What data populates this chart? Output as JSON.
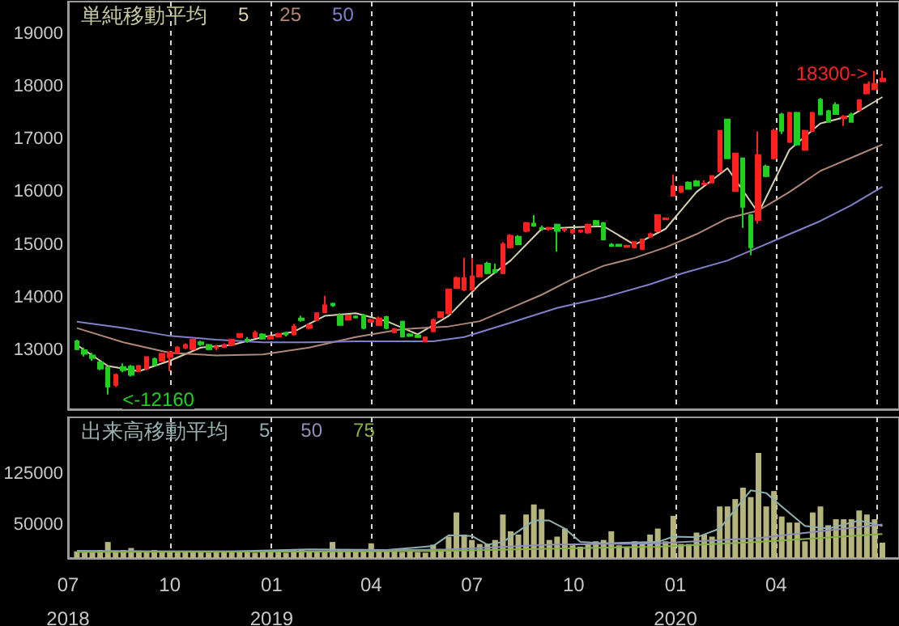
{
  "chart_data": [
    {
      "type": "candlestick",
      "legend_title": "単純移動平均",
      "legend": "top left",
      "marker": "none",
      "grid": "x",
      "tick_labels": "y",
      "x": [
        "2018-07-09",
        "2018-07-16",
        "2018-07-23",
        "2018-07-30",
        "2018-08-06",
        "2018-08-13",
        "2018-08-20",
        "2018-08-27",
        "2018-09-03",
        "2018-09-10",
        "2018-09-17",
        "2018-09-24",
        "2018-10-01",
        "2018-10-08",
        "2018-10-15",
        "2018-10-22",
        "2018-10-29",
        "2018-11-05",
        "2018-11-12",
        "2018-11-19",
        "2018-11-26",
        "2018-12-03",
        "2018-12-10",
        "2018-12-17",
        "2018-12-24",
        "2018-12-31",
        "2019-01-07",
        "2019-01-14",
        "2019-01-21",
        "2019-01-28",
        "2019-02-04",
        "2019-02-11",
        "2019-02-18",
        "2019-02-25",
        "2019-03-04",
        "2019-03-11",
        "2019-03-18",
        "2019-03-25",
        "2019-04-01",
        "2019-04-08",
        "2019-04-15",
        "2019-04-22",
        "2019-04-29",
        "2019-05-06",
        "2019-05-13",
        "2019-05-20",
        "2019-05-27",
        "2019-06-03",
        "2019-06-10",
        "2019-06-17",
        "2019-06-24",
        "2019-07-01",
        "2019-07-08",
        "2019-07-15",
        "2019-07-22",
        "2019-07-29",
        "2019-08-05",
        "2019-08-12",
        "2019-08-19",
        "2019-08-26",
        "2019-09-02",
        "2019-09-09",
        "2019-09-16",
        "2019-09-23",
        "2019-09-30",
        "2019-10-07",
        "2019-10-14",
        "2019-10-21",
        "2019-10-28",
        "2019-11-04",
        "2019-11-11",
        "2019-11-18",
        "2019-11-25",
        "2019-12-02",
        "2019-12-09",
        "2019-12-16",
        "2019-12-23",
        "2019-12-30",
        "2020-01-06",
        "2020-01-13",
        "2020-01-20",
        "2020-01-27",
        "2020-02-03",
        "2020-02-10",
        "2020-02-17",
        "2020-02-24",
        "2020-03-02",
        "2020-03-09",
        "2020-03-16",
        "2020-03-23",
        "2020-03-30",
        "2020-04-06",
        "2020-04-13",
        "2020-04-20",
        "2020-04-27",
        "2020-05-04",
        "2020-05-11",
        "2020-05-18",
        "2020-05-25",
        "2020-06-01",
        "2020-06-08",
        "2020-06-15",
        "2020-06-22",
        "2020-06-29",
        "2020-07-06"
      ],
      "ohlc": [
        [
          13170,
          13200,
          13000,
          13020
        ],
        [
          13000,
          13050,
          12880,
          12930
        ],
        [
          12900,
          12950,
          12800,
          12850
        ],
        [
          12770,
          12800,
          12620,
          12650
        ],
        [
          12680,
          12700,
          12160,
          12310
        ],
        [
          12340,
          12560,
          12300,
          12530
        ],
        [
          12680,
          12750,
          12580,
          12620
        ],
        [
          12690,
          12720,
          12500,
          12530
        ],
        [
          12600,
          12720,
          12580,
          12700
        ],
        [
          12650,
          12880,
          12620,
          12870
        ],
        [
          12830,
          12860,
          12700,
          12720
        ],
        [
          12800,
          12950,
          12780,
          12930
        ],
        [
          12870,
          12980,
          12600,
          12960
        ],
        [
          12950,
          13080,
          12930,
          13050
        ],
        [
          13050,
          13130,
          13020,
          13100
        ],
        [
          13020,
          13220,
          13000,
          13200
        ],
        [
          13150,
          13180,
          13080,
          13110
        ],
        [
          13100,
          13120,
          13000,
          13020
        ],
        [
          13050,
          13100,
          13000,
          13060
        ],
        [
          13060,
          13130,
          13040,
          13100
        ],
        [
          13100,
          13220,
          13080,
          13200
        ],
        [
          13250,
          13320,
          13230,
          13310
        ],
        [
          13200,
          13250,
          13140,
          13180
        ],
        [
          13250,
          13370,
          13230,
          13330
        ],
        [
          13300,
          13320,
          13200,
          13220
        ],
        [
          13220,
          13280,
          13200,
          13260
        ],
        [
          13260,
          13330,
          13240,
          13310
        ],
        [
          13330,
          13350,
          13260,
          13300
        ],
        [
          13300,
          13500,
          13280,
          13450
        ],
        [
          13600,
          13650,
          13540,
          13570
        ],
        [
          13420,
          13500,
          13400,
          13480
        ],
        [
          13570,
          13720,
          13560,
          13700
        ],
        [
          13720,
          14030,
          13700,
          13850
        ],
        [
          13880,
          13900,
          13820,
          13850
        ],
        [
          13660,
          13700,
          13460,
          13480
        ],
        [
          13580,
          13680,
          13560,
          13660
        ],
        [
          13640,
          13660,
          13600,
          13620
        ],
        [
          13660,
          13690,
          13400,
          13420
        ],
        [
          13540,
          13600,
          13530,
          13570
        ],
        [
          13480,
          13640,
          13460,
          13600
        ],
        [
          13630,
          13650,
          13400,
          13420
        ],
        [
          13340,
          13420,
          13320,
          13400
        ],
        [
          13540,
          13560,
          13240,
          13260
        ],
        [
          13300,
          13320,
          13250,
          13270
        ],
        [
          13280,
          13300,
          13230,
          13250
        ],
        [
          13170,
          13260,
          13150,
          13240
        ],
        [
          13360,
          13600,
          13340,
          13570
        ],
        [
          13630,
          13740,
          13610,
          13720
        ],
        [
          13700,
          14170,
          13680,
          14150
        ],
        [
          14180,
          14400,
          14160,
          14370
        ],
        [
          14150,
          14750,
          14120,
          14370
        ],
        [
          14150,
          14750,
          14120,
          14400
        ],
        [
          14400,
          14620,
          14380,
          14610
        ],
        [
          14640,
          14680,
          14440,
          14460
        ],
        [
          14520,
          14640,
          14460,
          14480
        ],
        [
          14460,
          15050,
          14440,
          15010
        ],
        [
          14950,
          15200,
          14930,
          15170
        ],
        [
          15150,
          15180,
          14990,
          15010
        ],
        [
          15260,
          15430,
          15240,
          15410
        ],
        [
          15400,
          15560,
          15340,
          15360
        ],
        [
          15320,
          15360,
          15260,
          15300
        ],
        [
          15300,
          15340,
          15260,
          15320
        ],
        [
          15380,
          15400,
          14870,
          15260
        ],
        [
          15280,
          15320,
          15240,
          15290
        ],
        [
          15230,
          15300,
          15200,
          15280
        ],
        [
          15250,
          15290,
          15220,
          15270
        ],
        [
          15230,
          15400,
          15210,
          15380
        ],
        [
          15450,
          15470,
          15370,
          15380
        ],
        [
          15410,
          15430,
          15080,
          15100
        ],
        [
          15000,
          15030,
          14960,
          14980
        ],
        [
          15000,
          15020,
          14960,
          14980
        ],
        [
          14960,
          15000,
          14940,
          14980
        ],
        [
          14950,
          15060,
          14930,
          15050
        ],
        [
          14920,
          15110,
          14900,
          15100
        ],
        [
          15150,
          15230,
          15130,
          15200
        ],
        [
          15260,
          15580,
          15240,
          15560
        ],
        [
          15480,
          15520,
          15470,
          15500
        ],
        [
          15930,
          16330,
          15920,
          16110
        ],
        [
          16000,
          16120,
          15980,
          16100
        ],
        [
          16180,
          16200,
          16050,
          16060
        ],
        [
          16200,
          16230,
          16100,
          16120
        ],
        [
          16150,
          16220,
          16130,
          16160
        ],
        [
          16180,
          16320,
          16170,
          16300
        ],
        [
          16390,
          17160,
          16380,
          17160
        ],
        [
          17375,
          17380,
          16640,
          16640
        ],
        [
          16020,
          16730,
          16000,
          16730
        ],
        [
          16640,
          16650,
          15320,
          15720
        ],
        [
          15560,
          15570,
          14800,
          14950
        ],
        [
          15470,
          17150,
          15400,
          16700
        ],
        [
          16480,
          16520,
          16280,
          16300
        ],
        [
          16640,
          17200,
          16620,
          17160
        ],
        [
          17470,
          17500,
          17100,
          17160
        ],
        [
          16950,
          17520,
          16930,
          17500
        ],
        [
          17500,
          17520,
          16880,
          16900
        ],
        [
          16800,
          17180,
          16780,
          17160
        ],
        [
          17160,
          17520,
          17140,
          17500
        ],
        [
          17750,
          17780,
          17460,
          17470
        ],
        [
          17530,
          17560,
          17330,
          17330
        ],
        [
          17650,
          17700,
          17480,
          17480
        ],
        [
          17400,
          17460,
          17250,
          17430
        ],
        [
          17470,
          17500,
          17330,
          17330
        ],
        [
          17560,
          17760,
          17540,
          17740
        ],
        [
          17870,
          18100,
          17850,
          18080
        ],
        [
          17950,
          18300,
          17930,
          18050
        ],
        [
          18100,
          18300,
          18080,
          18150
        ]
      ],
      "series": [
        {
          "name": "5",
          "type": "line",
          "color": "#d8d0b0",
          "x": [
            "2018-07-09",
            "2018-08-06",
            "2018-09-03",
            "2018-10-01",
            "2018-10-29",
            "2018-11-26",
            "2018-12-24",
            "2019-01-21",
            "2019-02-18",
            "2019-03-18",
            "2019-04-15",
            "2019-05-13",
            "2019-06-10",
            "2019-07-08",
            "2019-08-05",
            "2019-09-02",
            "2019-09-30",
            "2019-10-28",
            "2019-11-25",
            "2019-12-23",
            "2020-01-20",
            "2020-02-17",
            "2020-03-16",
            "2020-04-13",
            "2020-05-11",
            "2020-06-08",
            "2020-07-06"
          ],
          "values": [
            13100,
            12700,
            12600,
            12800,
            13050,
            13100,
            13250,
            13350,
            13650,
            13700,
            13550,
            13300,
            13650,
            14250,
            14700,
            15300,
            15330,
            15350,
            15000,
            15300,
            16000,
            16450,
            15600,
            16800,
            17300,
            17450,
            17800
          ]
        },
        {
          "name": "25",
          "type": "line",
          "color": "#b08878",
          "x": [
            "2018-07-09",
            "2018-08-20",
            "2018-10-01",
            "2018-11-12",
            "2018-12-24",
            "2019-02-04",
            "2019-03-18",
            "2019-04-29",
            "2019-06-10",
            "2019-07-08",
            "2019-08-05",
            "2019-09-02",
            "2019-09-30",
            "2019-10-28",
            "2019-11-25",
            "2019-12-23",
            "2020-01-20",
            "2020-02-17",
            "2020-03-16",
            "2020-04-13",
            "2020-05-11",
            "2020-06-08",
            "2020-07-06"
          ],
          "values": [
            13420,
            13150,
            12950,
            12900,
            12920,
            13050,
            13250,
            13400,
            13450,
            13550,
            13800,
            14050,
            14350,
            14600,
            14750,
            14950,
            15200,
            15500,
            15650,
            16000,
            16400,
            16650,
            16900
          ]
        },
        {
          "name": "50",
          "type": "line",
          "color": "#8080c8",
          "x": [
            "2018-07-09",
            "2018-08-20",
            "2018-10-01",
            "2018-11-12",
            "2018-12-24",
            "2019-02-04",
            "2019-03-18",
            "2019-04-29",
            "2019-05-27",
            "2019-06-24",
            "2019-08-05",
            "2019-09-16",
            "2019-10-28",
            "2019-12-09",
            "2020-01-06",
            "2020-02-17",
            "2020-03-16",
            "2020-04-13",
            "2020-05-11",
            "2020-06-08",
            "2020-07-06"
          ],
          "values": [
            13540,
            13420,
            13270,
            13200,
            13150,
            13150,
            13170,
            13170,
            13170,
            13250,
            13520,
            13800,
            14000,
            14250,
            14450,
            14700,
            14950,
            15200,
            15450,
            15750,
            16100
          ]
        }
      ],
      "xlim": [
        "2018-07-01",
        "2020-07-21"
      ],
      "xticks": [
        {
          "value": "2018-07-01",
          "label": null
        },
        {
          "value": "2018-10-01",
          "label": null
        },
        {
          "value": "2019-01-01",
          "label": null
        },
        {
          "value": "2019-04-01",
          "label": null
        },
        {
          "value": "2019-07-01",
          "label": null
        },
        {
          "value": "2019-10-01",
          "label": null
        },
        {
          "value": "2020-01-01",
          "label": null
        },
        {
          "value": "2020-04-01",
          "label": null
        },
        {
          "value": "2020-07-01",
          "label": null
        }
      ],
      "ylim": [
        11880,
        19610
      ],
      "yticks": [
        13000,
        14000,
        15000,
        16000,
        17000,
        18000,
        19000
      ],
      "annotations": [
        {
          "text": "<-12160",
          "x": "2018-08-06",
          "y": 12160
        },
        {
          "text": "18300->",
          "x": "2020-07-06",
          "y": 18300
        }
      ]
    },
    {
      "type": "bar",
      "legend_title": "出来高移動平均",
      "legend": "top left",
      "marker": "none",
      "grid": "x",
      "x": [
        "2018-07-09",
        "2018-07-16",
        "2018-07-23",
        "2018-07-30",
        "2018-08-06",
        "2018-08-13",
        "2018-08-20",
        "2018-08-27",
        "2018-09-03",
        "2018-09-10",
        "2018-09-17",
        "2018-09-24",
        "2018-10-01",
        "2018-10-08",
        "2018-10-15",
        "2018-10-22",
        "2018-10-29",
        "2018-11-05",
        "2018-11-12",
        "2018-11-19",
        "2018-11-26",
        "2018-12-03",
        "2018-12-10",
        "2018-12-17",
        "2018-12-24",
        "2018-12-31",
        "2019-01-07",
        "2019-01-14",
        "2019-01-21",
        "2019-01-28",
        "2019-02-04",
        "2019-02-11",
        "2019-02-18",
        "2019-02-25",
        "2019-03-04",
        "2019-03-11",
        "2019-03-18",
        "2019-03-25",
        "2019-04-01",
        "2019-04-08",
        "2019-04-15",
        "2019-04-22",
        "2019-04-29",
        "2019-05-06",
        "2019-05-13",
        "2019-05-20",
        "2019-05-27",
        "2019-06-03",
        "2019-06-10",
        "2019-06-17",
        "2019-06-24",
        "2019-07-01",
        "2019-07-08",
        "2019-07-15",
        "2019-07-22",
        "2019-07-29",
        "2019-08-05",
        "2019-08-12",
        "2019-08-19",
        "2019-08-26",
        "2019-09-02",
        "2019-09-09",
        "2019-09-16",
        "2019-09-23",
        "2019-09-30",
        "2019-10-07",
        "2019-10-14",
        "2019-10-21",
        "2019-10-28",
        "2019-11-04",
        "2019-11-11",
        "2019-11-18",
        "2019-11-25",
        "2019-12-02",
        "2019-12-09",
        "2019-12-16",
        "2019-12-23",
        "2019-12-30",
        "2020-01-06",
        "2020-01-13",
        "2020-01-20",
        "2020-01-27",
        "2020-02-03",
        "2020-02-10",
        "2020-02-17",
        "2020-02-24",
        "2020-03-02",
        "2020-03-09",
        "2020-03-16",
        "2020-03-23",
        "2020-03-30",
        "2020-04-06",
        "2020-04-13",
        "2020-04-20",
        "2020-04-27",
        "2020-05-04",
        "2020-05-11",
        "2020-05-18",
        "2020-05-25",
        "2020-06-01",
        "2020-06-08",
        "2020-06-15",
        "2020-06-22",
        "2020-06-29",
        "2020-07-06"
      ],
      "series": [
        {
          "color": "#b4b47c",
          "values": [
            10000,
            9000,
            10000,
            12000,
            24000,
            11000,
            12000,
            15000,
            11000,
            9000,
            12000,
            9000,
            9000,
            10000,
            9000,
            9000,
            10000,
            8000,
            9000,
            10000,
            9000,
            9000,
            11000,
            8000,
            9000,
            10000,
            9000,
            8000,
            12000,
            13000,
            11000,
            9000,
            10000,
            24000,
            12000,
            11000,
            10000,
            11000,
            22000,
            12000,
            13000,
            12000,
            9000,
            10000,
            9000,
            8000,
            20000,
            12000,
            32000,
            68000,
            35000,
            27000,
            21000,
            21000,
            27000,
            65000,
            40000,
            35000,
            65000,
            80000,
            73000,
            27000,
            32000,
            44000,
            19000,
            17000,
            21000,
            25000,
            27000,
            40000,
            19000,
            17000,
            25000,
            21000,
            35000,
            44000,
            25000,
            63000,
            21000,
            21000,
            38000,
            35000,
            32000,
            77000,
            77000,
            88000,
            105000,
            91000,
            157000,
            77000,
            100000,
            62000,
            53000,
            53000,
            25000,
            68000,
            77000,
            49000,
            58000,
            58000,
            58000,
            71000,
            65000,
            58000,
            23000
          ]
        },
        {
          "name": "5",
          "type": "line",
          "color": "#90b0b0",
          "x": [
            "2018-07-09",
            "2018-09-17",
            "2018-11-26",
            "2019-02-04",
            "2019-04-15",
            "2019-05-27",
            "2019-06-10",
            "2019-07-01",
            "2019-07-15",
            "2019-07-29",
            "2019-08-12",
            "2019-08-26",
            "2019-09-09",
            "2019-09-23",
            "2019-10-07",
            "2019-10-28",
            "2019-12-16",
            "2019-12-30",
            "2020-01-20",
            "2020-02-10",
            "2020-02-24",
            "2020-03-09",
            "2020-03-23",
            "2020-04-06",
            "2020-04-27",
            "2020-05-18",
            "2020-06-15",
            "2020-07-06"
          ],
          "values": [
            11000,
            10000,
            10000,
            13000,
            12000,
            18000,
            34000,
            33000,
            20000,
            24000,
            40000,
            56000,
            56000,
            44000,
            24000,
            22000,
            24000,
            32000,
            31000,
            44000,
            73000,
            101000,
            97000,
            77000,
            48000,
            44000,
            56000,
            48000
          ]
        },
        {
          "name": "50",
          "type": "line",
          "color": "#9090b8",
          "x": [
            "2018-07-09",
            "2019-02-04",
            "2019-06-10",
            "2019-09-09",
            "2019-12-16",
            "2020-03-16",
            "2020-05-11",
            "2020-07-06"
          ],
          "values": [
            10000,
            10000,
            13000,
            20000,
            22000,
            30000,
            40000,
            50000
          ]
        },
        {
          "name": "75",
          "type": "line",
          "color": "#88b048",
          "x": [
            "2018-07-09",
            "2019-04-15",
            "2019-06-10",
            "2019-09-09",
            "2019-12-16",
            "2020-03-16",
            "2020-05-11",
            "2020-07-06"
          ],
          "values": [
            9000,
            10000,
            11000,
            14000,
            17000,
            24000,
            30000,
            36000
          ]
        }
      ],
      "xlim": [
        "2018-07-01",
        "2020-07-21"
      ],
      "xticks": [
        {
          "value": "2018-07-01",
          "label": "07\n2018"
        },
        {
          "value": "2018-10-01",
          "label": "10"
        },
        {
          "value": "2019-01-01",
          "label": "01\n2019"
        },
        {
          "value": "2019-04-01",
          "label": "04"
        },
        {
          "value": "2019-07-01",
          "label": "07"
        },
        {
          "value": "2019-10-01",
          "label": "10"
        },
        {
          "value": "2020-01-01",
          "label": "01\n2020"
        },
        {
          "value": "2020-04-01",
          "label": "04"
        },
        {
          "value": "2020-07-01",
          "label": null
        }
      ],
      "ylim": [
        0,
        210000
      ],
      "yticks": [
        50000,
        125000
      ]
    }
  ]
}
